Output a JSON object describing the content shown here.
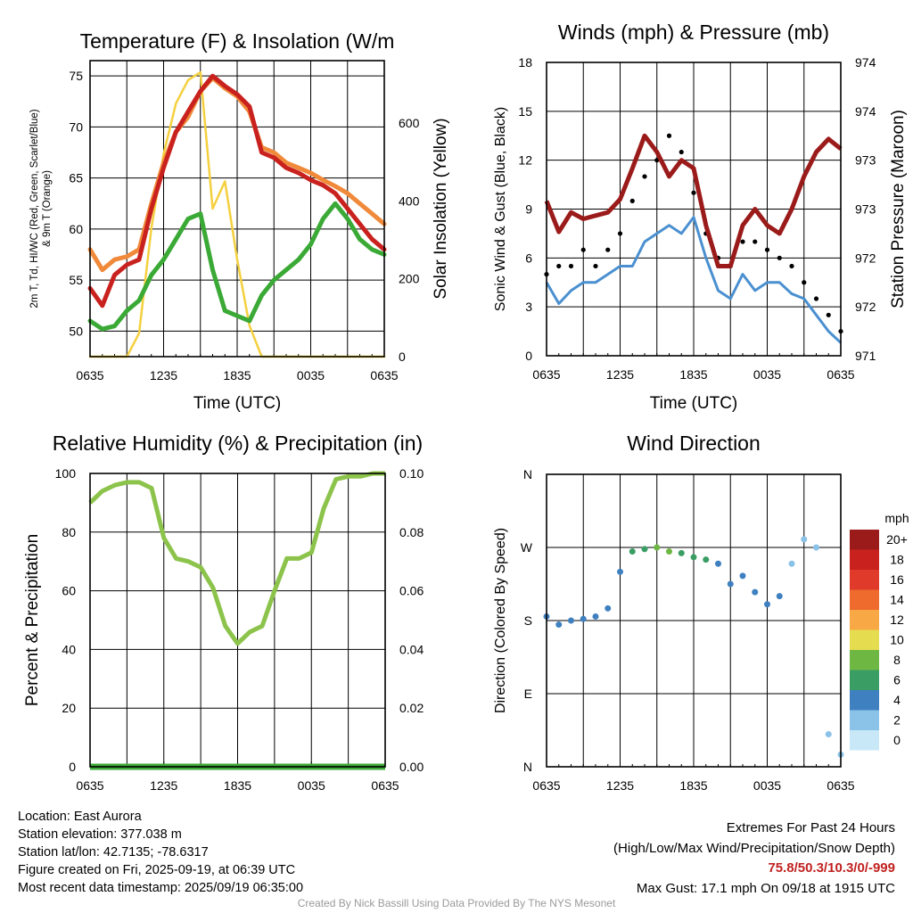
{
  "theme": {
    "temp": "#c9211e",
    "dew": "#3aa935",
    "hiwc": "#ee6a2a",
    "t9m": "#f08a3a",
    "sun": "#f4d03f",
    "wind": "#4a90d0",
    "gust": "#000000",
    "pres": "#9b1b1b",
    "rh": "#8cc34b",
    "precip": "#3aa935"
  },
  "x_ticks": [
    "0635",
    "1235",
    "1835",
    "0035",
    "0635"
  ],
  "chart_data": [
    {
      "type": "line",
      "title": "Temperature (F) & Insolation (W/m²)",
      "xlabel": "Time (UTC)",
      "ylabel": "2m T, Td, HI/WC (Red, Green, Scarlet/Blue) & 9m T (Orange)",
      "ylabel_lines": [
        "2m T, Td, HI/WC (Red, Green, Scarlet/Blue)",
        "& 9m T (Orange)"
      ],
      "ylabel_right": "Solar Insolation (Yellow)",
      "ylim": [
        47.5,
        76.5
      ],
      "yticks": [
        50,
        55,
        60,
        65,
        70,
        75
      ],
      "ylim_right": [
        0,
        760
      ],
      "yticks_right": [
        0,
        200,
        400,
        600
      ],
      "x_hours": [
        0,
        1,
        2,
        3,
        4,
        5,
        6,
        7,
        8,
        9,
        10,
        11,
        12,
        13,
        14,
        15,
        16,
        17,
        18,
        19,
        20,
        21,
        22,
        23,
        24
      ],
      "series": [
        {
          "name": "2m T",
          "color": "#c9211e",
          "values": [
            54.2,
            52.5,
            55.5,
            56.5,
            57.0,
            62.0,
            66.0,
            69.5,
            71.5,
            73.5,
            75.0,
            74.0,
            73.2,
            72.0,
            67.5,
            67.0,
            66.0,
            65.5,
            64.8,
            64.3,
            63.5,
            62.0,
            60.5,
            59.0,
            58.0
          ]
        },
        {
          "name": "9m T",
          "color": "#f08a3a",
          "values": [
            58.0,
            56.0,
            57.0,
            57.3,
            58.0,
            62.5,
            66.5,
            69.5,
            71.0,
            73.5,
            74.8,
            73.8,
            73.0,
            71.5,
            68.0,
            67.5,
            66.5,
            66.0,
            65.5,
            64.8,
            64.2,
            63.5,
            62.5,
            61.5,
            60.5
          ]
        },
        {
          "name": "2m Td",
          "color": "#3aa935",
          "values": [
            51.0,
            50.2,
            50.5,
            52.0,
            53.0,
            55.5,
            57.0,
            59.0,
            61.0,
            61.5,
            56.0,
            52.0,
            51.5,
            51.0,
            53.5,
            55.0,
            56.0,
            57.0,
            58.5,
            61.0,
            62.5,
            61.0,
            59.0,
            58.0,
            57.5
          ]
        },
        {
          "name": "Solar Insolation",
          "color": "#f4d03f",
          "axis": "right",
          "values": [
            0,
            0,
            0,
            0,
            60,
            330,
            520,
            650,
            710,
            730,
            380,
            450,
            250,
            80,
            0,
            0,
            0,
            0,
            0,
            0,
            0,
            0,
            0,
            0,
            0
          ]
        }
      ]
    },
    {
      "type": "line",
      "title": "Winds (mph) & Pressure (mb)",
      "xlabel": "Time (UTC)",
      "ylabel": "Sonic Wind & Gust (Blue, Black)",
      "ylabel_right": "Station Pressure (Maroon)",
      "ylim": [
        0,
        18
      ],
      "yticks": [
        0,
        3,
        6,
        9,
        12,
        15,
        18
      ],
      "right_tick_labels": [
        "971",
        "972",
        "972",
        "973",
        "973",
        "974",
        "974"
      ],
      "x_hours": [
        0,
        1,
        2,
        3,
        4,
        5,
        6,
        7,
        8,
        9,
        10,
        11,
        12,
        13,
        14,
        15,
        16,
        17,
        18,
        19,
        20,
        21,
        22,
        23,
        24
      ],
      "series": [
        {
          "name": "Sonic Wind",
          "color": "#4a90d0",
          "values": [
            4.5,
            3.2,
            4.0,
            4.5,
            4.5,
            5.0,
            5.5,
            5.5,
            7.0,
            7.5,
            8.0,
            7.5,
            8.5,
            6.0,
            4.0,
            3.5,
            5.0,
            4.0,
            4.5,
            4.5,
            3.8,
            3.5,
            2.5,
            1.5,
            0.8
          ]
        },
        {
          "name": "Gust",
          "color": "#000000",
          "values": [
            5.0,
            5.5,
            5.5,
            6.5,
            5.5,
            6.5,
            7.5,
            9.5,
            11.0,
            12.0,
            13.5,
            12.5,
            10.0,
            7.5,
            6.0,
            5.5,
            7.0,
            7.0,
            6.5,
            6.0,
            5.5,
            4.5,
            3.5,
            2.5,
            1.5
          ]
        },
        {
          "name": "Station Pressure",
          "color": "#9b1b1b",
          "axis": "right",
          "values": [
            9.5,
            7.6,
            8.8,
            8.4,
            8.6,
            8.8,
            9.6,
            11.5,
            13.5,
            12.5,
            11.0,
            12.0,
            11.5,
            8.0,
            5.5,
            5.5,
            8.0,
            9.0,
            8.0,
            7.5,
            9.0,
            11.0,
            12.5,
            13.3,
            12.7
          ]
        }
      ]
    },
    {
      "type": "line",
      "title": "Relative Humidity (%) & Precipitation (in)",
      "ylabel": "Percent & Precipitation",
      "ylim": [
        0,
        100
      ],
      "yticks": [
        0,
        20,
        40,
        60,
        80,
        100
      ],
      "right_tick_labels": [
        "0.00",
        "0.02",
        "0.04",
        "0.06",
        "0.08",
        "0.10"
      ],
      "x_hours": [
        0,
        1,
        2,
        3,
        4,
        5,
        6,
        7,
        8,
        9,
        10,
        11,
        12,
        13,
        14,
        15,
        16,
        17,
        18,
        19,
        20,
        21,
        22,
        23,
        24
      ],
      "series": [
        {
          "name": "Relative Humidity",
          "color": "#8cc34b",
          "values": [
            90,
            94,
            96,
            97,
            97,
            95,
            78,
            71,
            70,
            68,
            61,
            48,
            42,
            46,
            48,
            60,
            71,
            71,
            73,
            88,
            98,
            99,
            99,
            100,
            100
          ]
        },
        {
          "name": "Precipitation",
          "color": "#3aa935",
          "values": [
            0,
            0,
            0,
            0,
            0,
            0,
            0,
            0,
            0,
            0,
            0,
            0,
            0,
            0,
            0,
            0,
            0,
            0,
            0,
            0,
            0,
            0,
            0,
            0,
            0
          ]
        }
      ]
    },
    {
      "type": "scatter",
      "title": "Wind Direction",
      "ylabel": "Direction (Colored By Speed)",
      "ylim": [
        0,
        360
      ],
      "ytick_labels": [
        "N",
        "E",
        "S",
        "W",
        "N"
      ],
      "yticks": [
        0,
        90,
        180,
        270,
        360
      ],
      "x_hours": [
        0,
        1,
        2,
        3,
        4,
        5,
        6,
        7,
        8,
        9,
        10,
        11,
        12,
        13,
        14,
        15,
        16,
        17,
        18,
        19,
        20,
        21,
        22,
        23,
        24
      ],
      "values": [
        185,
        175,
        180,
        182,
        185,
        195,
        240,
        265,
        268,
        270,
        265,
        263,
        258,
        255,
        250,
        225,
        235,
        215,
        200,
        210,
        250,
        280,
        270,
        40,
        15
      ],
      "speeds": [
        3,
        3,
        3,
        3,
        3,
        3,
        4,
        5,
        6,
        7,
        7,
        6,
        6,
        5,
        4,
        3,
        4,
        3,
        3,
        3,
        2,
        1,
        1,
        1,
        1
      ],
      "legend": {
        "title": "mph",
        "labels": [
          "20+",
          "18",
          "16",
          "14",
          "12",
          "10",
          "8",
          "6",
          "4",
          "2",
          "0"
        ],
        "colors": [
          "#9b1b1b",
          "#c9211e",
          "#e03a2a",
          "#ef6a2d",
          "#f8a945",
          "#e5dc50",
          "#6fb743",
          "#3a9e64",
          "#3f80c0",
          "#8ac2e8",
          "#c8e8f8"
        ]
      }
    }
  ],
  "footer": {
    "location": "Location: East Aurora",
    "elevation": "Station elevation: 377.038 m",
    "latlon": "Station lat/lon: 42.7135; -78.6317",
    "created": "Figure created on Fri, 2025-09-19, at 06:39 UTC",
    "recent": "Most recent data timestamp: 2025/09/19 06:35:00",
    "extremes_title": "Extremes For Past 24 Hours",
    "extremes_subtitle": "(High/Low/Max Wind/Precipitation/Snow Depth)",
    "extremes_values": "75.8/50.3/10.3/0/-999",
    "max_gust": "Max Gust: 17.1 mph On 09/18 at 1915 UTC",
    "credit": "Created By Nick Bassill Using Data Provided By The NYS Mesonet"
  }
}
